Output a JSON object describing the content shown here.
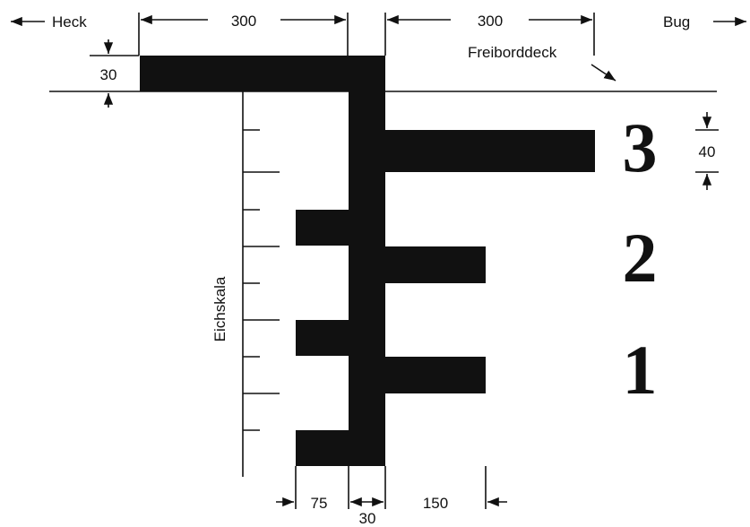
{
  "labels": {
    "heck": "Heck",
    "bug": "Bug",
    "freiborddeck": "Freiborddeck",
    "eichskala": "Eichskala"
  },
  "dimensions": {
    "deck_aft_length": "300",
    "deck_fwd_length": "300",
    "deck_thickness": "30",
    "bar_thickness": "40",
    "short_bar_length": "75",
    "vertical_thickness": "30",
    "long_bar_length": "150"
  },
  "marks": [
    "3",
    "2",
    "1"
  ],
  "colors": {
    "ink": "#111111",
    "background": "#ffffff"
  }
}
